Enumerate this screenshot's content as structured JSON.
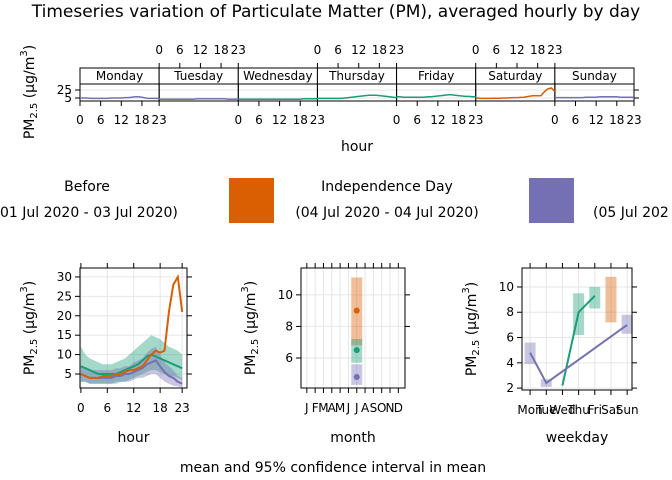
{
  "title": "Timeseries variation of Particulate Matter (PM), averaged hourly by day",
  "caption": "mean and 95% confidence interval in mean",
  "legend": {
    "items": [
      {
        "name": "Before",
        "label": "01 Jul 2020 - 03 Jul 2020)",
        "color": "#1B9E77"
      },
      {
        "name": "Independence Day",
        "label": "(04 Jul 2020 - 04 Jul 2020)",
        "color": "#D95F02"
      },
      {
        "label": "(05 Jul 202",
        "color": "#7570B3"
      }
    ]
  },
  "chart_data": [
    {
      "type": "line",
      "xlabel": "hour",
      "ylabel": [
        "PM",
        "2.5",
        " (μg/m",
        "3",
        ")"
      ],
      "categories": [
        "Monday",
        "Tuesday",
        "Wednesday",
        "Thursday",
        "Friday",
        "Saturday",
        "Sunday"
      ],
      "x": [
        0,
        1,
        2,
        3,
        4,
        5,
        6,
        7,
        8,
        9,
        10,
        11,
        12,
        13,
        14,
        15,
        16,
        17,
        18,
        19,
        20,
        21,
        22,
        23
      ],
      "xlim": [
        0,
        23
      ],
      "xticks": [
        0,
        6,
        12,
        18,
        23
      ],
      "ylim": [
        -2.5,
        40
      ],
      "yticks": [
        5,
        25
      ],
      "grid": true,
      "series": [
        {
          "color": "#1B9E77",
          "values": [
            null,
            null,
            [
              2,
              2,
              2,
              2,
              2,
              2,
              2,
              2,
              2,
              2,
              2,
              2,
              2,
              2,
              2,
              2,
              2,
              2,
              2,
              3,
              3,
              3,
              3,
              3
            ],
            [
              4,
              4,
              4,
              4,
              4,
              4,
              4,
              4,
              5,
              6,
              7,
              8,
              9,
              10,
              11,
              12,
              12,
              12,
              11,
              10,
              9,
              8,
              7,
              6
            ],
            [
              8,
              8,
              7,
              7,
              7,
              7,
              7,
              7,
              7,
              8,
              8,
              9,
              10,
              11,
              12,
              13,
              13,
              12,
              11,
              10,
              9,
              9,
              8,
              8
            ],
            null,
            null
          ]
        },
        {
          "color": "#D95F02",
          "values": [
            null,
            null,
            null,
            null,
            null,
            [
              5,
              4.5,
              4,
              4,
              4,
              4.5,
              4.5,
              4.5,
              5,
              5,
              5.5,
              6,
              6,
              6.5,
              7,
              8.5,
              10,
              11,
              10.5,
              11,
              21,
              28,
              30,
              21
            ],
            null
          ]
        },
        {
          "color": "#7570B3",
          "values": [
            [
              5,
              5,
              5,
              4,
              4,
              4,
              4,
              4,
              4,
              5,
              5,
              5,
              5,
              6,
              6,
              7,
              8,
              8,
              7,
              5,
              4,
              4,
              4,
              4
            ],
            [
              2,
              2,
              2,
              2,
              2,
              2,
              2,
              2,
              2,
              2,
              2,
              3,
              3,
              3,
              3,
              3,
              3,
              3,
              3,
              3,
              2,
              2,
              2,
              2
            ],
            null,
            null,
            null,
            null,
            [
              6,
              6,
              6,
              6,
              6,
              6,
              6,
              6,
              6,
              7,
              7,
              7,
              7,
              8,
              8,
              8,
              8,
              8,
              8,
              7,
              7,
              7,
              7,
              7
            ]
          ]
        }
      ]
    },
    {
      "type": "line",
      "interval": "area",
      "xlabel": "hour",
      "ylabel": [
        "PM",
        "2.5",
        " (μg/m",
        "3",
        ")"
      ],
      "xlim": [
        -0.2,
        24.1
      ],
      "xticks": [
        0,
        6,
        12,
        18,
        23
      ],
      "ylim": [
        1.4,
        32.3
      ],
      "yticks": [
        5,
        10,
        15,
        20,
        25,
        30
      ],
      "grid": true,
      "series": [
        {
          "color": "#1B9E77",
          "x": [
            0,
            1,
            2,
            3,
            4,
            5,
            6,
            7,
            8,
            9,
            10,
            11,
            12,
            13,
            14,
            15,
            16,
            17,
            18,
            19,
            20,
            21,
            22,
            23
          ],
          "values": [
            7,
            6.5,
            6,
            5.5,
            5,
            5,
            5,
            5,
            5,
            5.5,
            6,
            6.5,
            7,
            7.5,
            8.5,
            9.5,
            10,
            9.5,
            9,
            8.5,
            8,
            7.5,
            7,
            6.5
          ],
          "lower": [
            3,
            3,
            2.5,
            2.5,
            2.5,
            2.5,
            2.5,
            2.5,
            2.5,
            3,
            3,
            3.5,
            4,
            4.5,
            5,
            5.5,
            6,
            6,
            5.5,
            5,
            4.5,
            4.5,
            4,
            3.5
          ],
          "upper": [
            12,
            10,
            9,
            8.5,
            8,
            7.5,
            7.5,
            7.5,
            8,
            8.5,
            9,
            10,
            11,
            12,
            13,
            14,
            15,
            14.5,
            14,
            13,
            12,
            11.5,
            11,
            10
          ]
        },
        {
          "color": "#7570B3",
          "x": [
            0,
            1,
            2,
            3,
            4,
            5,
            6,
            7,
            8,
            9,
            10,
            11,
            12,
            13,
            14,
            15,
            16,
            17,
            18,
            19,
            20,
            21,
            22,
            23
          ],
          "values": [
            5,
            4.5,
            4,
            4,
            4,
            4,
            4,
            4,
            4.5,
            4.5,
            5,
            5,
            5.5,
            6,
            6.5,
            7.5,
            8,
            8.5,
            7,
            5.5,
            4.5,
            4,
            3,
            2.5
          ],
          "lower": [
            3,
            3,
            2.5,
            2.5,
            2.5,
            2.5,
            2.5,
            2.5,
            3,
            3,
            3,
            3,
            3.5,
            4,
            4,
            4.5,
            5,
            5,
            4,
            3,
            2.5,
            2,
            1.8,
            1.5
          ],
          "upper": [
            7,
            6.5,
            6,
            6,
            6,
            6,
            6,
            6,
            6.5,
            6.5,
            7,
            7,
            8,
            8.5,
            9,
            10.5,
            11.5,
            12,
            10,
            8,
            7,
            6,
            4.5,
            4
          ]
        },
        {
          "color": "#D95F02",
          "x": [
            0,
            1,
            2,
            3,
            4,
            5,
            6,
            7,
            8,
            9,
            10,
            11,
            12,
            13,
            14,
            15,
            16,
            17,
            18,
            19,
            20,
            21,
            22,
            23
          ],
          "values": [
            5,
            4.5,
            4,
            4,
            4,
            4.5,
            4.5,
            4.5,
            5,
            5,
            5.5,
            6,
            6,
            6.5,
            7,
            8.5,
            10,
            11,
            10.5,
            11,
            21,
            28,
            30,
            21
          ]
        }
      ]
    },
    {
      "type": "scatter",
      "interval": "bar",
      "xlabel": "month",
      "ylabel": [
        "PM",
        "2.5",
        " (μg/m",
        "3",
        ")"
      ],
      "xlim": [
        0.3,
        12.8
      ],
      "ylim": [
        4.1,
        11.7
      ],
      "yticks": [
        6,
        8,
        10
      ],
      "grid": true,
      "xticks": [
        {
          "value": 1,
          "label": "J"
        },
        {
          "value": 2,
          "label": "F"
        },
        {
          "value": 3,
          "label": "M"
        },
        {
          "value": 4,
          "label": "A"
        },
        {
          "value": 5,
          "label": "M"
        },
        {
          "value": 6,
          "label": "J"
        },
        {
          "value": 7,
          "label": "J"
        },
        {
          "value": 8,
          "label": "A"
        },
        {
          "value": 9,
          "label": "S"
        },
        {
          "value": 10,
          "label": "O"
        },
        {
          "value": 11,
          "label": "N"
        },
        {
          "value": 12,
          "label": "D"
        }
      ],
      "series": [
        {
          "color": "#D95F02",
          "x": [
            7
          ],
          "values": [
            9.0
          ],
          "lower": [
            6.8
          ],
          "upper": [
            11.1
          ]
        },
        {
          "color": "#1B9E77",
          "x": [
            7
          ],
          "values": [
            6.5
          ],
          "lower": [
            5.7
          ],
          "upper": [
            7.2
          ]
        },
        {
          "color": "#7570B3",
          "x": [
            7
          ],
          "values": [
            4.8
          ],
          "lower": [
            4.3
          ],
          "upper": [
            5.6
          ]
        }
      ]
    },
    {
      "type": "line",
      "interval": "bar",
      "xlabel": "weekday",
      "ylabel": [
        "PM",
        "2.5",
        " (μg/m",
        "3",
        ")"
      ],
      "xlim": [
        0.5,
        7.3
      ],
      "ylim": [
        1.85,
        11.5
      ],
      "yticks": [
        2,
        4,
        6,
        8,
        10
      ],
      "grid": true,
      "xticks": [
        {
          "value": 1,
          "label": "Mon"
        },
        {
          "value": 2,
          "label": "Tue"
        },
        {
          "value": 3,
          "label": "Wed"
        },
        {
          "value": 4,
          "label": "Thu"
        },
        {
          "value": 5,
          "label": "Fri"
        },
        {
          "value": 6,
          "label": "Sat"
        },
        {
          "value": 7,
          "label": "Sun"
        }
      ],
      "series": [
        {
          "color": "#1B9E77",
          "x": [
            3,
            4,
            5
          ],
          "values": [
            2.2,
            8.0,
            9.3
          ],
          "lower": [
            null,
            6.2,
            8.3
          ],
          "upper": [
            null,
            9.5,
            10.0
          ]
        },
        {
          "color": "#D95F02",
          "x": [
            6
          ],
          "values": [
            9.0
          ],
          "lower": [
            7.2
          ],
          "upper": [
            10.8
          ]
        },
        {
          "color": "#7570B3",
          "x": [
            1,
            2,
            7
          ],
          "values": [
            4.8,
            2.4,
            7.0
          ],
          "lower": [
            3.9,
            2.1,
            6.3
          ],
          "upper": [
            5.6,
            2.7,
            7.8
          ]
        }
      ]
    }
  ]
}
